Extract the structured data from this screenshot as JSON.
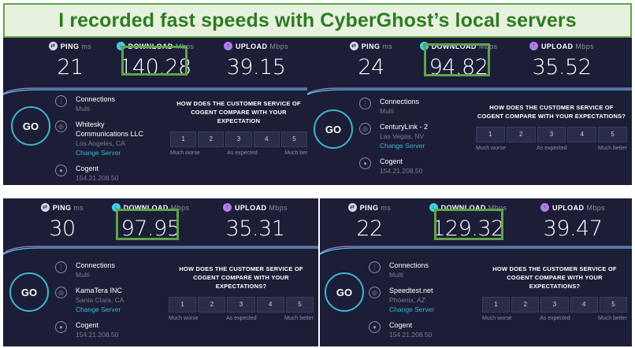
{
  "banner": {
    "title": "I recorded fast speeds with CyberGhost’s local servers"
  },
  "labels": {
    "ping": "PING",
    "ping_unit": "ms",
    "download": "DOWNLOAD",
    "upload": "UPLOAD",
    "mbps": "Mbps",
    "go": "GO",
    "connections": "Connections",
    "multi": "Multi",
    "change_server": "Change Server",
    "host": "Cogent",
    "ip": "154.21.208.50",
    "scale": [
      "1",
      "2",
      "3",
      "4",
      "5"
    ],
    "much_worse": "Much worse",
    "as_expected": "As expected"
  },
  "tests": [
    {
      "ping": "21",
      "download": "140.28",
      "upload": "39.15",
      "provider_line1": "Whitesky",
      "provider_line2": "Communications LLC",
      "location": "Los Angeles, CA",
      "survey_line1": "HOW DOES THE CUSTOMER SERVICE OF",
      "survey_line2": "COGENT COMPARE WITH YOUR EXPECTATION",
      "much_better": "Much bet"
    },
    {
      "ping": "24",
      "download": "94.82",
      "upload": "35.52",
      "provider_line1": "CenturyLink - 2",
      "location": "Las Vegas, NV",
      "survey_line1": "HOW DOES THE CUSTOMER SERVICE OF",
      "survey_line2": "COGENT COMPARE WITH YOUR EXPECTATIONS?",
      "much_better": "Much better"
    },
    {
      "ping": "30",
      "download": "97.95",
      "upload": "35.31",
      "provider_line1": "KamaTera INC",
      "location": "Santa Clara, CA",
      "survey_line1": "HOW DOES THE CUSTOMER SERVICE OF",
      "survey_line2": "COGENT COMPARE WITH YOUR EXPECTATIONS?",
      "much_better": "Much better"
    },
    {
      "ping": "22",
      "download": "129.32",
      "upload": "39.47",
      "provider_line1": "Speedtest.net",
      "location": "Phoenix, AZ",
      "survey_line1": "HOW DOES THE CUSTOMER SERVICE OF",
      "survey_line2": "COGENT COMPARE WITH YOUR EXPECTATIONS?",
      "much_better": "Much better"
    }
  ],
  "colors": {
    "panel_bg": "#1c1d36",
    "highlight": "#5fa447",
    "download_accent": "#43d0e6",
    "upload_accent": "#b07ee8",
    "link": "#3fb5cf"
  }
}
